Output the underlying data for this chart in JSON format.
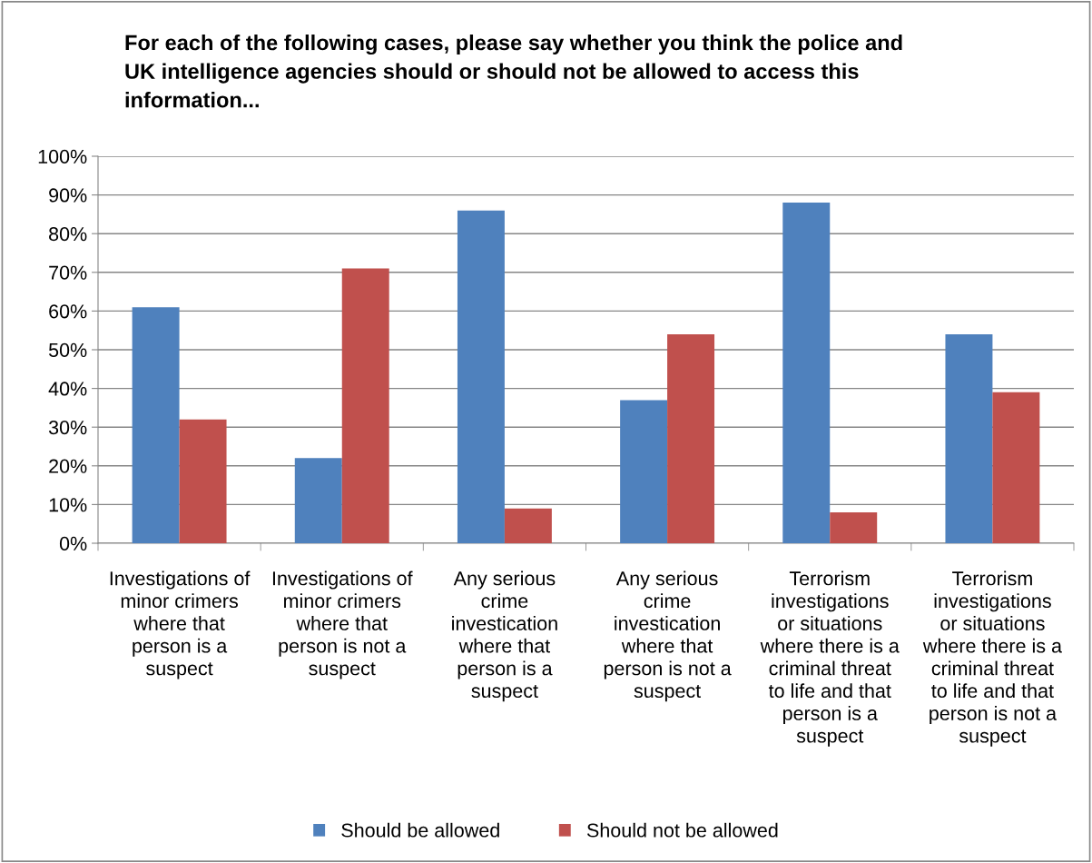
{
  "chart_data": {
    "type": "bar",
    "title": "For each of the following cases, please say whether you think the police and\nUK intelligence agencies should or should not be allowed to access this\ninformation...",
    "categories": [
      "Investigations of\nminor crimers\nwhere that\nperson is a\nsuspect",
      "Investigations of\nminor crimers\nwhere that\nperson is not a\nsuspect",
      "Any serious\ncrime\ninvestication\nwhere that\nperson is a\nsuspect",
      "Any serious\ncrime\ninvestication\nwhere that\nperson is not a\nsuspect",
      "Terrorism\ninvestigations\nor situations\nwhere there is a\ncriminal threat\nto life and that\nperson is a\nsuspect",
      "Terrorism\ninvestigations\nor situations\nwhere there is a\ncriminal threat\nto life and that\nperson is not a\nsuspect"
    ],
    "series": [
      {
        "name": "Should be allowed",
        "color": "#4f81bd",
        "values": [
          61,
          22,
          86,
          37,
          88,
          54
        ]
      },
      {
        "name": "Should not be allowed",
        "color": "#c0504d",
        "values": [
          32,
          71,
          9,
          54,
          8,
          39
        ]
      }
    ],
    "ylim": [
      0,
      100
    ],
    "yticks": [
      {
        "value": 0,
        "label": "0%"
      },
      {
        "value": 10,
        "label": "10%"
      },
      {
        "value": 20,
        "label": "20%"
      },
      {
        "value": 30,
        "label": "30%"
      },
      {
        "value": 40,
        "label": "40%"
      },
      {
        "value": 50,
        "label": "50%"
      },
      {
        "value": 60,
        "label": "60%"
      },
      {
        "value": 70,
        "label": "70%"
      },
      {
        "value": 80,
        "label": "80%"
      },
      {
        "value": 90,
        "label": "90%"
      },
      {
        "value": 100,
        "label": "100%"
      }
    ],
    "grid": "y",
    "legend": "bottom"
  }
}
